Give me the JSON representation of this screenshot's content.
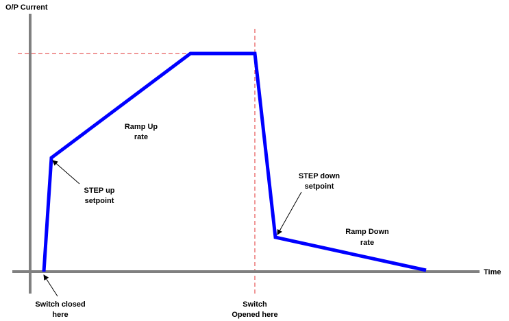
{
  "diagram": {
    "y_axis_label": "O/P Current",
    "x_axis_label": "Time",
    "annotations": {
      "ramp_up": [
        "Ramp Up",
        "rate"
      ],
      "step_up": [
        "STEP up",
        "setpoint"
      ],
      "step_down": [
        "STEP down",
        "setpoint"
      ],
      "ramp_down": [
        "Ramp Down",
        "rate"
      ],
      "switch_closed": [
        "Switch closed",
        "here"
      ],
      "switch_opened": [
        "Switch",
        "Opened here"
      ]
    },
    "colors": {
      "axis": "#808080",
      "curve": "#0000ff",
      "reference_line": "#e03030"
    }
  }
}
